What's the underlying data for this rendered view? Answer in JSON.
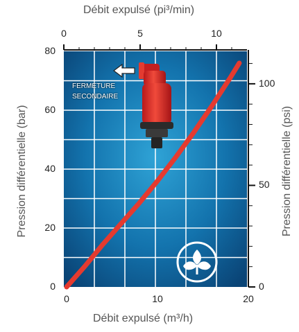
{
  "chart_data": {
    "type": "line",
    "title_top": "Débit expulsé (pi³/min)",
    "xlabel": "Débit expulsé (m³/h)",
    "ylabel_left": "Pression différentielle  (bar)",
    "ylabel_right": "Pression différentielle  (psi)",
    "x_range": [
      0,
      20
    ],
    "x_ticks": [
      "0",
      "10",
      "20"
    ],
    "top_x_range": [
      0,
      12
    ],
    "top_x_ticks": [
      "0",
      "5",
      "10"
    ],
    "y_left_range": [
      0,
      80
    ],
    "y_left_ticks": [
      "0",
      "20",
      "40",
      "60",
      "80"
    ],
    "y_right_range": [
      0,
      116
    ],
    "y_right_ticks": [
      "0",
      "50",
      "100"
    ],
    "grid": true,
    "series": [
      {
        "color": "#e53a2f",
        "x": [
          0,
          2,
          4,
          6,
          8,
          10,
          12,
          14,
          16,
          18,
          19
        ],
        "y": [
          0,
          7,
          14.5,
          21.5,
          28.5,
          36,
          44,
          52.5,
          61.5,
          71,
          76
        ]
      }
    ],
    "annotation": "FERMETURE\nSECONDAIRE",
    "colors": {
      "background": "#0d5a8c",
      "grid": "#ffffff",
      "curve": "#e53a2f"
    }
  }
}
